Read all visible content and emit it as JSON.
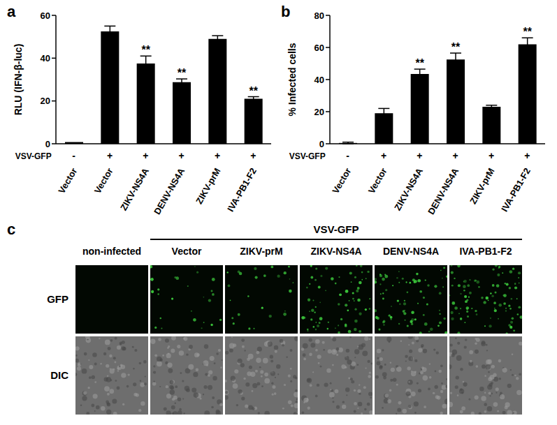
{
  "chart_data": [
    {
      "type": "bar",
      "title": "a",
      "categories": [
        "Vector",
        "Vector",
        "ZIKV-NS4A",
        "DENV-NS4A",
        "ZIKV-prM",
        "IVA-PB1-F2"
      ],
      "values": [
        0.8,
        52.5,
        37.5,
        28.8,
        49,
        21
      ],
      "errors": [
        0,
        2.5,
        3.5,
        1.5,
        1.5,
        1
      ],
      "significance": [
        null,
        null,
        "**",
        "**",
        null,
        "**"
      ],
      "infection_label": "VSV-GFP",
      "infection": [
        "-",
        "+",
        "+",
        "+",
        "+",
        "+"
      ],
      "y_label": "RLU (IFN-β-luc)",
      "ylim": [
        0,
        60
      ],
      "yticks": [
        0,
        20,
        40,
        60
      ],
      "color": "#000000"
    },
    {
      "type": "bar",
      "title": "b",
      "categories": [
        "Vector",
        "Vector",
        "ZIKV-NS4A",
        "DENV-NS4A",
        "ZIKV-prM",
        "IVA-PB1-F2"
      ],
      "values": [
        0.5,
        19,
        43.5,
        52.5,
        23,
        62
      ],
      "errors": [
        0.5,
        3,
        3,
        4,
        1,
        4
      ],
      "significance": [
        null,
        null,
        "**",
        "**",
        null,
        "**"
      ],
      "infection_label": "VSV-GFP",
      "infection": [
        "-",
        "+",
        "+",
        "+",
        "+",
        "+"
      ],
      "y_label": "% Infected cells",
      "ylim": [
        0,
        80
      ],
      "yticks": [
        0,
        20,
        40,
        60,
        80
      ],
      "color": "#000000"
    }
  ],
  "image_panel": {
    "title": "c",
    "header": "VSV-GFP",
    "columns": [
      "non-infected",
      "Vector",
      "ZIKV-prM",
      "ZIKV-NS4A",
      "DENV-NS4A",
      "IVA-PB1-F2"
    ],
    "rows": [
      "GFP",
      "DIC"
    ]
  }
}
